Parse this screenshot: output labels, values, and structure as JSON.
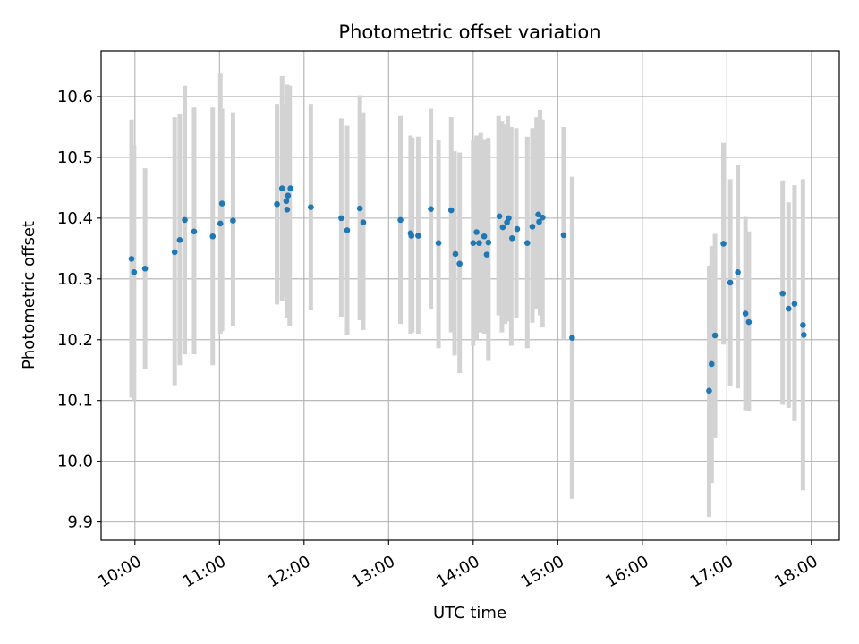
{
  "chart_data": {
    "type": "scatter",
    "title": "Photometric offset variation",
    "xlabel": "UTC time",
    "ylabel": "Photometric offset",
    "x_unit": "hours (UTC)",
    "xlim": [
      9.6,
      18.33
    ],
    "ylim": [
      9.87,
      10.675
    ],
    "grid": true,
    "x_ticks": [
      {
        "value": 10,
        "label": "10:00"
      },
      {
        "value": 11,
        "label": "11:00"
      },
      {
        "value": 12,
        "label": "12:00"
      },
      {
        "value": 13,
        "label": "13:00"
      },
      {
        "value": 14,
        "label": "14:00"
      },
      {
        "value": 15,
        "label": "15:00"
      },
      {
        "value": 16,
        "label": "16:00"
      },
      {
        "value": 17,
        "label": "17:00"
      },
      {
        "value": 18,
        "label": "18:00"
      }
    ],
    "y_ticks": [
      {
        "value": 9.9,
        "label": "9.9"
      },
      {
        "value": 10.0,
        "label": "10.0"
      },
      {
        "value": 10.1,
        "label": "10.1"
      },
      {
        "value": 10.2,
        "label": "10.2"
      },
      {
        "value": 10.3,
        "label": "10.3"
      },
      {
        "value": 10.4,
        "label": "10.4"
      },
      {
        "value": 10.5,
        "label": "10.5"
      },
      {
        "value": 10.6,
        "label": "10.6"
      }
    ],
    "colors": {
      "points": "#1f77b4",
      "errorbars": "#d3d3d3",
      "grid": "#b0b0b0"
    },
    "errorbars": [
      [
        9.96,
        10.105,
        10.562
      ],
      [
        9.99,
        10.1,
        10.52
      ],
      [
        10.12,
        10.152,
        10.482
      ],
      [
        10.47,
        10.125,
        10.566
      ],
      [
        10.53,
        10.158,
        10.572
      ],
      [
        10.59,
        10.176,
        10.618
      ],
      [
        10.7,
        10.176,
        10.582
      ],
      [
        10.92,
        10.158,
        10.582
      ],
      [
        11.01,
        10.21,
        10.638
      ],
      [
        11.03,
        10.214,
        10.58
      ],
      [
        11.16,
        10.222,
        10.574
      ],
      [
        11.68,
        10.258,
        10.588
      ],
      [
        11.74,
        10.264,
        10.634
      ],
      [
        11.78,
        10.27,
        10.588
      ],
      [
        11.8,
        10.236,
        10.62
      ],
      [
        11.83,
        10.222,
        10.618
      ],
      [
        12.08,
        10.248,
        10.588
      ],
      [
        12.44,
        10.238,
        10.564
      ],
      [
        12.51,
        10.208,
        10.552
      ],
      [
        12.66,
        10.232,
        10.602
      ],
      [
        12.7,
        10.216,
        10.574
      ],
      [
        13.14,
        10.226,
        10.568
      ],
      [
        13.26,
        10.21,
        10.536
      ],
      [
        13.28,
        10.212,
        10.532
      ],
      [
        13.35,
        10.21,
        10.534
      ],
      [
        13.5,
        10.25,
        10.58
      ],
      [
        13.59,
        10.186,
        10.528
      ],
      [
        13.74,
        10.212,
        10.566
      ],
      [
        13.78,
        10.174,
        10.51
      ],
      [
        13.84,
        10.145,
        10.508
      ],
      [
        14.0,
        10.19,
        10.528
      ],
      [
        14.04,
        10.2,
        10.536
      ],
      [
        14.09,
        10.212,
        10.54
      ],
      [
        14.13,
        10.21,
        10.53
      ],
      [
        14.18,
        10.165,
        10.532
      ],
      [
        14.3,
        10.24,
        10.568
      ],
      [
        14.34,
        10.212,
        10.56
      ],
      [
        14.38,
        10.226,
        10.554
      ],
      [
        14.41,
        10.23,
        10.568
      ],
      [
        14.45,
        10.19,
        10.55
      ],
      [
        14.51,
        10.236,
        10.548
      ],
      [
        14.64,
        10.186,
        10.534
      ],
      [
        14.7,
        10.228,
        10.548
      ],
      [
        14.75,
        10.25,
        10.566
      ],
      [
        14.79,
        10.24,
        10.578
      ],
      [
        14.82,
        10.22,
        10.562
      ],
      [
        15.07,
        10.2,
        10.55
      ],
      [
        15.17,
        9.938,
        10.468
      ],
      [
        16.79,
        9.908,
        10.322
      ],
      [
        16.82,
        9.964,
        10.354
      ],
      [
        16.86,
        10.038,
        10.374
      ],
      [
        16.96,
        10.192,
        10.524
      ],
      [
        17.04,
        10.124,
        10.464
      ],
      [
        17.13,
        10.12,
        10.488
      ],
      [
        17.22,
        10.084,
        10.402
      ],
      [
        17.26,
        10.083,
        10.378
      ],
      [
        17.66,
        10.093,
        10.462
      ],
      [
        17.73,
        10.088,
        10.426
      ],
      [
        17.8,
        10.066,
        10.454
      ],
      [
        17.9,
        9.952,
        10.464
      ]
    ],
    "points": [
      [
        9.96,
        10.333
      ],
      [
        9.99,
        10.311
      ],
      [
        10.12,
        10.317
      ],
      [
        10.47,
        10.344
      ],
      [
        10.53,
        10.364
      ],
      [
        10.59,
        10.397
      ],
      [
        10.7,
        10.378
      ],
      [
        10.92,
        10.37
      ],
      [
        11.01,
        10.391
      ],
      [
        11.03,
        10.424
      ],
      [
        11.16,
        10.396
      ],
      [
        11.68,
        10.423
      ],
      [
        11.74,
        10.449
      ],
      [
        11.79,
        10.428
      ],
      [
        11.8,
        10.414
      ],
      [
        11.81,
        10.437
      ],
      [
        11.84,
        10.449
      ],
      [
        12.08,
        10.418
      ],
      [
        12.44,
        10.4
      ],
      [
        12.51,
        10.38
      ],
      [
        12.66,
        10.416
      ],
      [
        12.7,
        10.393
      ],
      [
        13.14,
        10.397
      ],
      [
        13.26,
        10.375
      ],
      [
        13.27,
        10.371
      ],
      [
        13.35,
        10.371
      ],
      [
        13.5,
        10.415
      ],
      [
        13.59,
        10.359
      ],
      [
        13.74,
        10.413
      ],
      [
        13.79,
        10.341
      ],
      [
        13.84,
        10.325
      ],
      [
        14.0,
        10.359
      ],
      [
        14.04,
        10.377
      ],
      [
        14.07,
        10.359
      ],
      [
        14.13,
        10.37
      ],
      [
        14.16,
        10.34
      ],
      [
        14.18,
        10.36
      ],
      [
        14.31,
        10.403
      ],
      [
        14.35,
        10.385
      ],
      [
        14.4,
        10.393
      ],
      [
        14.42,
        10.4
      ],
      [
        14.46,
        10.367
      ],
      [
        14.52,
        10.382
      ],
      [
        14.64,
        10.359
      ],
      [
        14.7,
        10.386
      ],
      [
        14.77,
        10.406
      ],
      [
        14.78,
        10.394
      ],
      [
        14.82,
        10.401
      ],
      [
        15.07,
        10.372
      ],
      [
        15.17,
        10.203
      ],
      [
        16.79,
        10.116
      ],
      [
        16.82,
        10.16
      ],
      [
        16.86,
        10.207
      ],
      [
        16.96,
        10.358
      ],
      [
        17.04,
        10.294
      ],
      [
        17.13,
        10.311
      ],
      [
        17.22,
        10.243
      ],
      [
        17.26,
        10.229
      ],
      [
        17.66,
        10.276
      ],
      [
        17.73,
        10.251
      ],
      [
        17.8,
        10.259
      ],
      [
        17.9,
        10.224
      ],
      [
        17.91,
        10.208
      ]
    ]
  }
}
